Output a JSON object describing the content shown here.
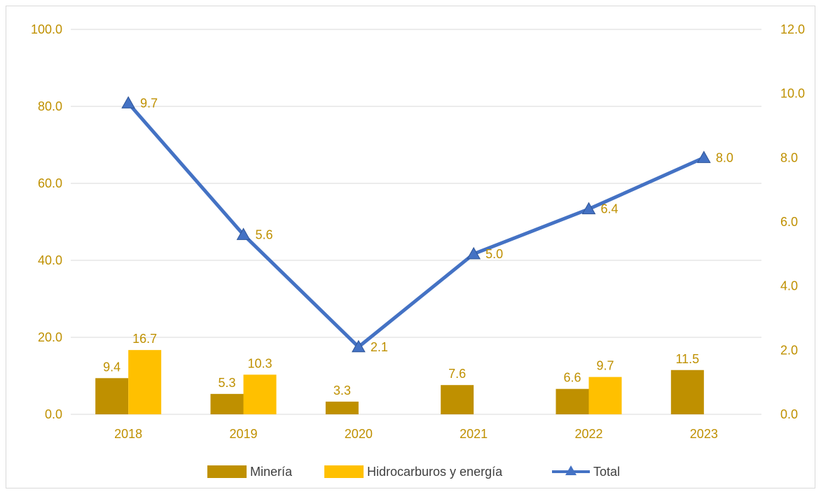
{
  "colors": {
    "mineria": "#bf9000",
    "hidrocarburos": "#ffc000",
    "total": "#4472c4",
    "axis_text": "#bf9000",
    "grid": "#d9d9d9"
  },
  "chart_data": {
    "type": "bar",
    "categories": [
      "2018",
      "2019",
      "2020",
      "2021",
      "2022",
      "2023"
    ],
    "series": [
      {
        "name": "Minería",
        "type": "bar",
        "axis": "left",
        "values": [
          9.4,
          5.3,
          3.3,
          7.6,
          6.6,
          11.5
        ]
      },
      {
        "name": "Hidrocarburos y energía",
        "type": "bar",
        "axis": "left",
        "values": [
          16.7,
          10.3,
          null,
          null,
          9.7,
          null
        ]
      },
      {
        "name": "Total",
        "type": "line",
        "marker": "triangle",
        "axis": "right",
        "values": [
          9.7,
          5.6,
          2.1,
          5.0,
          6.4,
          8.0
        ]
      }
    ],
    "left_axis": {
      "ylim": [
        0,
        100
      ],
      "ticks": [
        "0.0",
        "20.0",
        "40.0",
        "60.0",
        "80.0",
        "100.0"
      ]
    },
    "right_axis": {
      "ylim": [
        0,
        12
      ],
      "ticks": [
        "0.0",
        "2.0",
        "4.0",
        "6.0",
        "8.0",
        "10.0",
        "12.0"
      ]
    },
    "title": "",
    "xlabel": "",
    "ylabel": "",
    "grid": true,
    "legend": "bottom-center"
  }
}
